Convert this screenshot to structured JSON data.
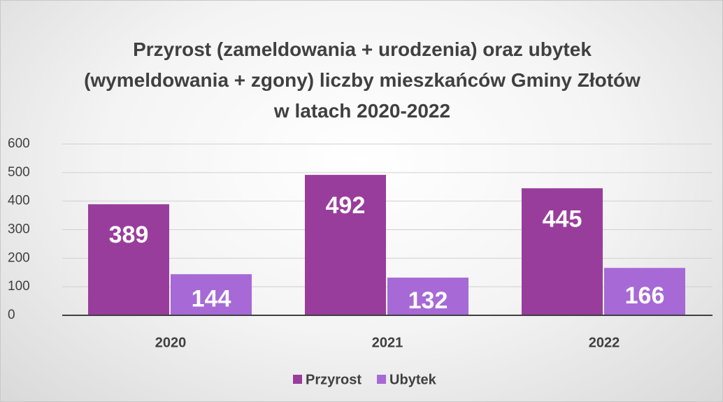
{
  "chart_data": {
    "type": "bar",
    "title": "Przyrost (zameldowania + urodzenia) oraz ubytek (wymeldowania + zgony) liczby mieszkańców Gminy Złotów w latach 2020-2022",
    "categories": [
      "2020",
      "2021",
      "2022"
    ],
    "series": [
      {
        "name": "Przyrost",
        "color": "#993d9c",
        "values": [
          389,
          492,
          445
        ]
      },
      {
        "name": "Ubytek",
        "color": "#a669d6",
        "values": [
          144,
          132,
          166
        ]
      }
    ],
    "ylim": [
      0,
      600
    ],
    "yticks": [
      0,
      100,
      200,
      300,
      400,
      500,
      600
    ],
    "grid": true,
    "legend": "bottom"
  }
}
